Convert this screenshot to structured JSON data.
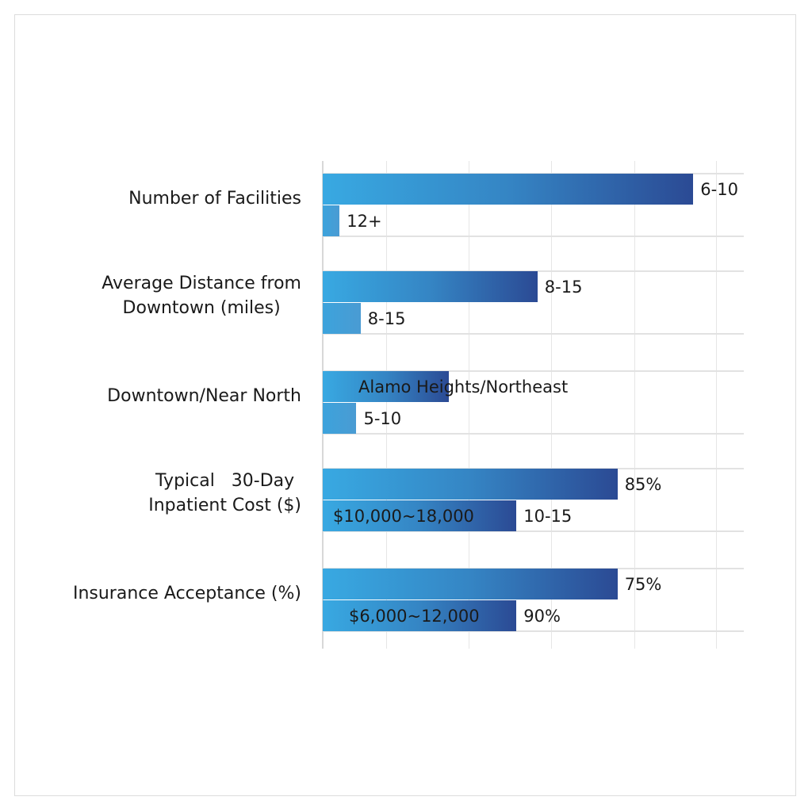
{
  "chart_data": {
    "type": "bar",
    "orientation": "horizontal",
    "title": "",
    "xlabel": "",
    "ylabel": "",
    "xlim": [
      0,
      100
    ],
    "grid": true,
    "colors": {
      "primary_start": "#38a9e2",
      "primary_end": "#2b4a94",
      "secondary": "#4a9bd3"
    },
    "categories": [
      "Number of Facilities",
      "Average Distance from\nDowntown (miles)",
      "Downtown/Near North",
      "Typical   30-Day\nInpatient Cost ($)",
      "Insurance Acceptance (%)"
    ],
    "series": [
      {
        "values": [
          88,
          51,
          30,
          70,
          70
        ],
        "labels": [
          "6-10",
          "8-15",
          "Alamo Heights/Northeast",
          "85%",
          "75%"
        ]
      },
      {
        "values": [
          4,
          9,
          8,
          46,
          46
        ],
        "labels": [
          "12+",
          "8-15",
          "5-10",
          "10-15",
          "90%"
        ],
        "inner_labels": [
          "",
          "",
          "",
          "$10,000~18,000",
          "$6,000~12,000"
        ]
      }
    ]
  }
}
